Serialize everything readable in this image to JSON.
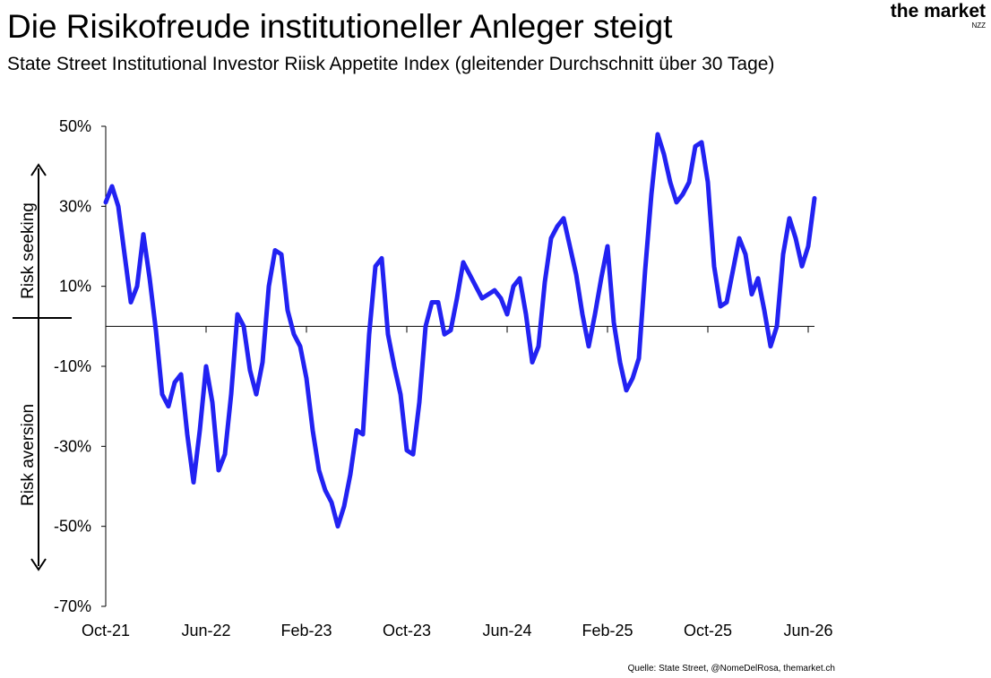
{
  "chart_data": {
    "type": "line",
    "title": "Die Risikofreude institutioneller Anleger steigt",
    "subtitle": "State Street Institutional Investor Riisk Appetite Index (gleitender Durchschnitt über 30 Tage)",
    "annotations": [
      "Risk seeking",
      "Risk aversion"
    ],
    "categories": [
      "Oct-21",
      null,
      null,
      null,
      null,
      null,
      null,
      null,
      null,
      null,
      null,
      null,
      null,
      null,
      null,
      null,
      "Jun-22",
      null,
      null,
      null,
      null,
      null,
      null,
      null,
      null,
      null,
      null,
      null,
      null,
      null,
      null,
      null,
      "Feb-23",
      null,
      null,
      null,
      null,
      null,
      null,
      null,
      null,
      null,
      null,
      null,
      null,
      null,
      null,
      null,
      "Oct-23",
      null,
      null,
      null,
      null,
      null,
      null,
      null,
      null,
      null,
      null,
      null,
      null,
      null,
      null,
      null,
      "Jun-24",
      null,
      null,
      null,
      null,
      null,
      null,
      null,
      null,
      null,
      null,
      null,
      null,
      null,
      null,
      null,
      "Feb-25",
      null,
      null,
      null,
      null,
      null,
      null,
      null,
      null,
      null,
      null,
      null,
      null,
      null,
      null,
      null,
      "Oct-25",
      null,
      null,
      null,
      null,
      null,
      null,
      null,
      null,
      null,
      null,
      null,
      null,
      null,
      null,
      null,
      "Jun-26",
      null
    ],
    "values": [
      31,
      35,
      30,
      18,
      6,
      10,
      23,
      12,
      -1,
      -17,
      -20,
      -14,
      -12,
      -27,
      -39,
      -26,
      -10,
      -19,
      -36,
      -32,
      -17,
      3,
      0,
      -11,
      -17,
      -9,
      10,
      19,
      18,
      4,
      -2,
      -5,
      -13,
      -26,
      -36,
      -41,
      -44,
      -50,
      -45,
      -37,
      -26,
      -27,
      -2,
      15,
      17,
      -2,
      -10,
      -17,
      -31,
      -32,
      -19,
      0,
      6,
      6,
      -2,
      -1,
      7,
      16,
      13,
      10,
      7,
      8,
      9,
      7,
      3,
      10,
      12,
      3,
      -9,
      -5,
      11,
      22,
      25,
      27,
      20,
      13,
      3,
      -5,
      3,
      12,
      20,
      1,
      -9,
      -16,
      -13,
      -8,
      14,
      33,
      48,
      43,
      36,
      31,
      33,
      36,
      45,
      46,
      36,
      15,
      5,
      6,
      14,
      22,
      18,
      8,
      12,
      4,
      -5,
      0,
      18,
      27,
      22,
      15,
      20,
      32
    ],
    "color": "#2222f2",
    "ylim": [
      -70,
      50
    ],
    "yticks": [
      {
        "value": 50,
        "label": "50%"
      },
      {
        "value": 30,
        "label": "30%"
      },
      {
        "value": 10,
        "label": "10%"
      },
      {
        "value": -10,
        "label": "-10%"
      },
      {
        "value": -30,
        "label": "-30%"
      },
      {
        "value": -50,
        "label": "-50%"
      },
      {
        "value": -70,
        "label": "-70%"
      }
    ]
  },
  "logo": {
    "name": "the market",
    "sub": "NZZ"
  },
  "source": "Quelle: State Street, @NomeDelRosa, themarket.ch"
}
